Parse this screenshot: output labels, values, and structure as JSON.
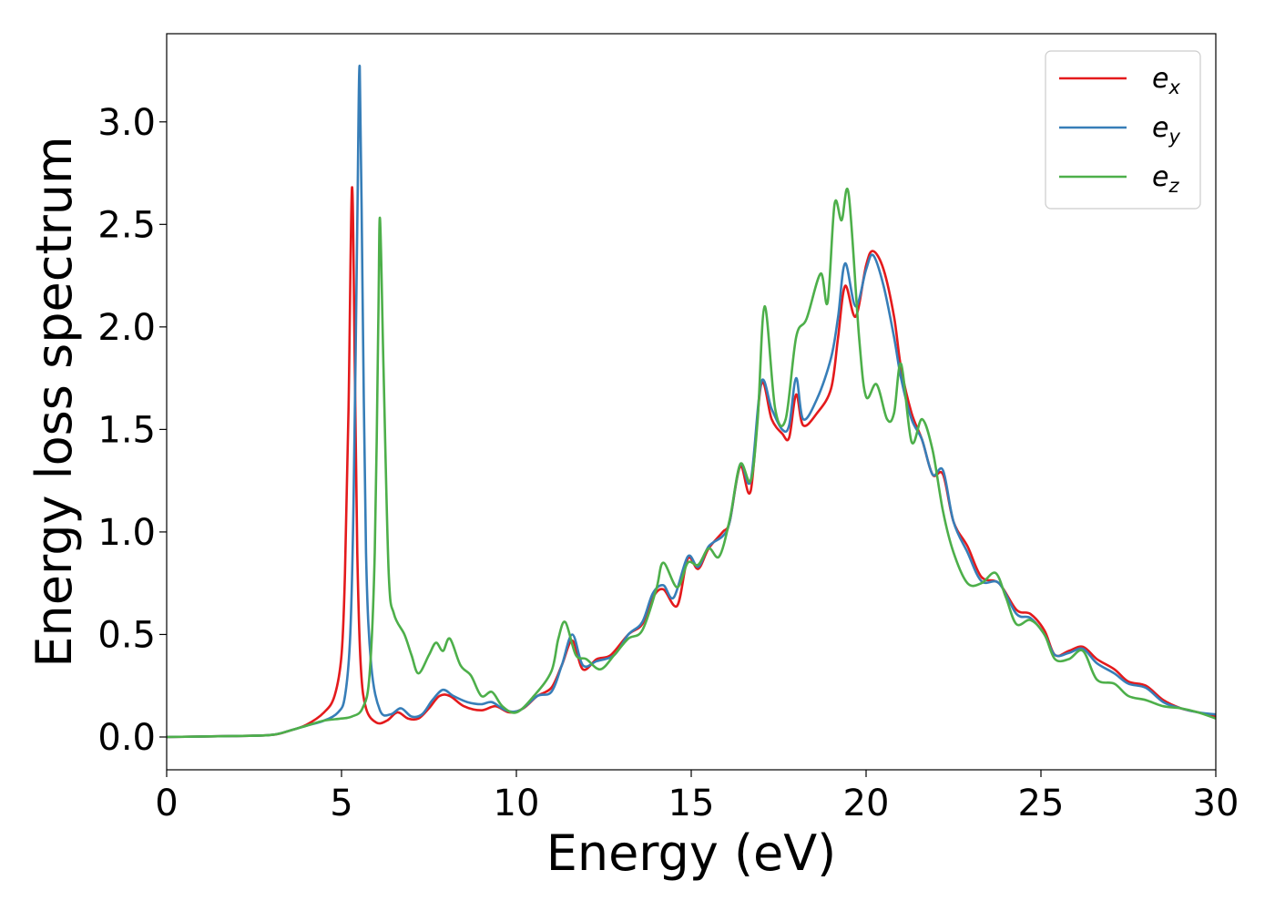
{
  "chart_data": {
    "type": "line",
    "title": "",
    "xlabel": "Energy (eV)",
    "ylabel": "Energy loss spectrum",
    "xlim": [
      0,
      30
    ],
    "ylim": [
      -0.16,
      3.43
    ],
    "xticks": [
      0,
      5,
      10,
      15,
      20,
      25,
      30
    ],
    "xtick_labels": [
      "0",
      "5",
      "10",
      "15",
      "20",
      "25",
      "30"
    ],
    "yticks": [
      0.0,
      0.5,
      1.0,
      1.5,
      2.0,
      2.5,
      3.0
    ],
    "ytick_labels": [
      "0.0",
      "0.5",
      "1.0",
      "1.5",
      "2.0",
      "2.5",
      "3.0"
    ],
    "grid": false,
    "legend_position": "top-right",
    "series": [
      {
        "name": "e_x",
        "legend_base": "e",
        "legend_sub": "x",
        "color": "#e41a1c",
        "points": [
          [
            0,
            0
          ],
          [
            2,
            0.005
          ],
          [
            3,
            0.01
          ],
          [
            3.5,
            0.03
          ],
          [
            4,
            0.06
          ],
          [
            4.5,
            0.12
          ],
          [
            4.8,
            0.2
          ],
          [
            5.0,
            0.4
          ],
          [
            5.1,
            0.8
          ],
          [
            5.2,
            1.6
          ],
          [
            5.3,
            2.68
          ],
          [
            5.38,
            1.8
          ],
          [
            5.45,
            0.9
          ],
          [
            5.55,
            0.35
          ],
          [
            5.7,
            0.14
          ],
          [
            6.0,
            0.07
          ],
          [
            6.3,
            0.08
          ],
          [
            6.6,
            0.12
          ],
          [
            6.9,
            0.09
          ],
          [
            7.2,
            0.09
          ],
          [
            7.5,
            0.14
          ],
          [
            7.8,
            0.2
          ],
          [
            8.1,
            0.2
          ],
          [
            8.5,
            0.15
          ],
          [
            9.0,
            0.13
          ],
          [
            9.4,
            0.15
          ],
          [
            9.8,
            0.12
          ],
          [
            10.2,
            0.14
          ],
          [
            10.6,
            0.2
          ],
          [
            11.0,
            0.24
          ],
          [
            11.3,
            0.35
          ],
          [
            11.6,
            0.47
          ],
          [
            11.9,
            0.33
          ],
          [
            12.3,
            0.38
          ],
          [
            12.7,
            0.4
          ],
          [
            13.2,
            0.5
          ],
          [
            13.6,
            0.55
          ],
          [
            13.9,
            0.68
          ],
          [
            14.2,
            0.72
          ],
          [
            14.6,
            0.64
          ],
          [
            14.9,
            0.87
          ],
          [
            15.2,
            0.82
          ],
          [
            15.5,
            0.92
          ],
          [
            15.9,
            1.0
          ],
          [
            16.1,
            1.05
          ],
          [
            16.4,
            1.32
          ],
          [
            16.7,
            1.2
          ],
          [
            17.0,
            1.72
          ],
          [
            17.3,
            1.55
          ],
          [
            17.6,
            1.48
          ],
          [
            17.8,
            1.46
          ],
          [
            18.0,
            1.67
          ],
          [
            18.2,
            1.52
          ],
          [
            18.6,
            1.58
          ],
          [
            19.0,
            1.7
          ],
          [
            19.2,
            1.95
          ],
          [
            19.4,
            2.2
          ],
          [
            19.7,
            2.05
          ],
          [
            20.0,
            2.3
          ],
          [
            20.2,
            2.37
          ],
          [
            20.5,
            2.28
          ],
          [
            20.8,
            2.05
          ],
          [
            21.0,
            1.8
          ],
          [
            21.3,
            1.58
          ],
          [
            21.6,
            1.45
          ],
          [
            21.9,
            1.28
          ],
          [
            22.2,
            1.28
          ],
          [
            22.5,
            1.05
          ],
          [
            22.9,
            0.93
          ],
          [
            23.3,
            0.78
          ],
          [
            23.8,
            0.75
          ],
          [
            24.3,
            0.62
          ],
          [
            24.7,
            0.6
          ],
          [
            25.1,
            0.52
          ],
          [
            25.4,
            0.4
          ],
          [
            25.8,
            0.42
          ],
          [
            26.2,
            0.44
          ],
          [
            26.6,
            0.38
          ],
          [
            27.1,
            0.33
          ],
          [
            27.5,
            0.27
          ],
          [
            28.0,
            0.25
          ],
          [
            28.5,
            0.18
          ],
          [
            29.0,
            0.14
          ],
          [
            29.5,
            0.12
          ],
          [
            30,
            0.1
          ]
        ]
      },
      {
        "name": "e_y",
        "legend_base": "e",
        "legend_sub": "y",
        "color": "#377eb8",
        "points": [
          [
            0,
            0
          ],
          [
            2,
            0.005
          ],
          [
            3,
            0.01
          ],
          [
            3.5,
            0.03
          ],
          [
            4,
            0.055
          ],
          [
            4.5,
            0.08
          ],
          [
            4.9,
            0.12
          ],
          [
            5.1,
            0.2
          ],
          [
            5.25,
            0.5
          ],
          [
            5.35,
            1.2
          ],
          [
            5.45,
            2.5
          ],
          [
            5.52,
            3.27
          ],
          [
            5.6,
            2.2
          ],
          [
            5.7,
            0.9
          ],
          [
            5.85,
            0.35
          ],
          [
            6.1,
            0.13
          ],
          [
            6.4,
            0.11
          ],
          [
            6.7,
            0.14
          ],
          [
            7.0,
            0.1
          ],
          [
            7.3,
            0.11
          ],
          [
            7.6,
            0.18
          ],
          [
            7.9,
            0.23
          ],
          [
            8.2,
            0.2
          ],
          [
            8.6,
            0.17
          ],
          [
            9.0,
            0.16
          ],
          [
            9.3,
            0.17
          ],
          [
            9.7,
            0.13
          ],
          [
            10.1,
            0.13
          ],
          [
            10.6,
            0.2
          ],
          [
            11.0,
            0.22
          ],
          [
            11.3,
            0.35
          ],
          [
            11.6,
            0.5
          ],
          [
            11.9,
            0.35
          ],
          [
            12.3,
            0.37
          ],
          [
            12.8,
            0.4
          ],
          [
            13.2,
            0.5
          ],
          [
            13.6,
            0.56
          ],
          [
            13.9,
            0.7
          ],
          [
            14.2,
            0.74
          ],
          [
            14.5,
            0.68
          ],
          [
            14.9,
            0.88
          ],
          [
            15.2,
            0.83
          ],
          [
            15.5,
            0.93
          ],
          [
            15.9,
            0.98
          ],
          [
            16.1,
            1.05
          ],
          [
            16.4,
            1.33
          ],
          [
            16.7,
            1.25
          ],
          [
            17.0,
            1.73
          ],
          [
            17.3,
            1.6
          ],
          [
            17.6,
            1.5
          ],
          [
            17.8,
            1.52
          ],
          [
            18.0,
            1.75
          ],
          [
            18.2,
            1.55
          ],
          [
            18.6,
            1.65
          ],
          [
            19.0,
            1.85
          ],
          [
            19.2,
            2.05
          ],
          [
            19.4,
            2.31
          ],
          [
            19.7,
            2.1
          ],
          [
            20.0,
            2.28
          ],
          [
            20.2,
            2.35
          ],
          [
            20.5,
            2.2
          ],
          [
            20.8,
            1.95
          ],
          [
            21.0,
            1.75
          ],
          [
            21.3,
            1.55
          ],
          [
            21.6,
            1.45
          ],
          [
            21.9,
            1.28
          ],
          [
            22.2,
            1.3
          ],
          [
            22.5,
            1.05
          ],
          [
            22.9,
            0.9
          ],
          [
            23.3,
            0.76
          ],
          [
            23.8,
            0.75
          ],
          [
            24.3,
            0.6
          ],
          [
            24.7,
            0.58
          ],
          [
            25.1,
            0.5
          ],
          [
            25.4,
            0.4
          ],
          [
            25.8,
            0.41
          ],
          [
            26.2,
            0.43
          ],
          [
            26.6,
            0.36
          ],
          [
            27.1,
            0.31
          ],
          [
            27.5,
            0.26
          ],
          [
            28.0,
            0.24
          ],
          [
            28.5,
            0.17
          ],
          [
            29.0,
            0.14
          ],
          [
            29.5,
            0.12
          ],
          [
            30,
            0.11
          ]
        ]
      },
      {
        "name": "e_z",
        "legend_base": "e",
        "legend_sub": "z",
        "color": "#4daf4a",
        "points": [
          [
            0,
            0
          ],
          [
            2,
            0.005
          ],
          [
            3,
            0.01
          ],
          [
            3.5,
            0.03
          ],
          [
            4,
            0.055
          ],
          [
            4.5,
            0.08
          ],
          [
            5.0,
            0.09
          ],
          [
            5.3,
            0.1
          ],
          [
            5.6,
            0.14
          ],
          [
            5.8,
            0.3
          ],
          [
            5.95,
            0.9
          ],
          [
            6.05,
            2.0
          ],
          [
            6.1,
            2.53
          ],
          [
            6.2,
            1.8
          ],
          [
            6.35,
            0.8
          ],
          [
            6.5,
            0.6
          ],
          [
            6.8,
            0.5
          ],
          [
            7.0,
            0.4
          ],
          [
            7.2,
            0.31
          ],
          [
            7.5,
            0.4
          ],
          [
            7.7,
            0.46
          ],
          [
            7.9,
            0.42
          ],
          [
            8.1,
            0.48
          ],
          [
            8.4,
            0.35
          ],
          [
            8.7,
            0.3
          ],
          [
            9.0,
            0.2
          ],
          [
            9.3,
            0.22
          ],
          [
            9.6,
            0.15
          ],
          [
            10.0,
            0.12
          ],
          [
            10.5,
            0.2
          ],
          [
            11.0,
            0.32
          ],
          [
            11.2,
            0.48
          ],
          [
            11.4,
            0.56
          ],
          [
            11.7,
            0.4
          ],
          [
            12.0,
            0.38
          ],
          [
            12.4,
            0.33
          ],
          [
            12.8,
            0.4
          ],
          [
            13.2,
            0.48
          ],
          [
            13.6,
            0.52
          ],
          [
            14.0,
            0.72
          ],
          [
            14.2,
            0.85
          ],
          [
            14.6,
            0.73
          ],
          [
            14.9,
            0.85
          ],
          [
            15.2,
            0.84
          ],
          [
            15.5,
            0.92
          ],
          [
            15.8,
            0.88
          ],
          [
            16.1,
            1.06
          ],
          [
            16.4,
            1.33
          ],
          [
            16.7,
            1.25
          ],
          [
            16.9,
            1.55
          ],
          [
            17.1,
            2.1
          ],
          [
            17.4,
            1.6
          ],
          [
            17.7,
            1.55
          ],
          [
            18.0,
            1.95
          ],
          [
            18.3,
            2.04
          ],
          [
            18.7,
            2.26
          ],
          [
            18.9,
            2.12
          ],
          [
            19.1,
            2.6
          ],
          [
            19.3,
            2.52
          ],
          [
            19.5,
            2.65
          ],
          [
            19.8,
            1.95
          ],
          [
            20.0,
            1.66
          ],
          [
            20.3,
            1.72
          ],
          [
            20.6,
            1.55
          ],
          [
            20.8,
            1.58
          ],
          [
            21.0,
            1.82
          ],
          [
            21.3,
            1.44
          ],
          [
            21.6,
            1.55
          ],
          [
            21.9,
            1.4
          ],
          [
            22.2,
            1.1
          ],
          [
            22.5,
            0.9
          ],
          [
            22.9,
            0.75
          ],
          [
            23.3,
            0.75
          ],
          [
            23.7,
            0.8
          ],
          [
            24.0,
            0.68
          ],
          [
            24.3,
            0.55
          ],
          [
            24.7,
            0.57
          ],
          [
            25.1,
            0.5
          ],
          [
            25.4,
            0.38
          ],
          [
            25.8,
            0.38
          ],
          [
            26.2,
            0.42
          ],
          [
            26.6,
            0.28
          ],
          [
            27.1,
            0.26
          ],
          [
            27.5,
            0.2
          ],
          [
            28.0,
            0.18
          ],
          [
            28.5,
            0.15
          ],
          [
            29.0,
            0.14
          ],
          [
            29.5,
            0.12
          ],
          [
            30,
            0.09
          ]
        ]
      }
    ]
  }
}
